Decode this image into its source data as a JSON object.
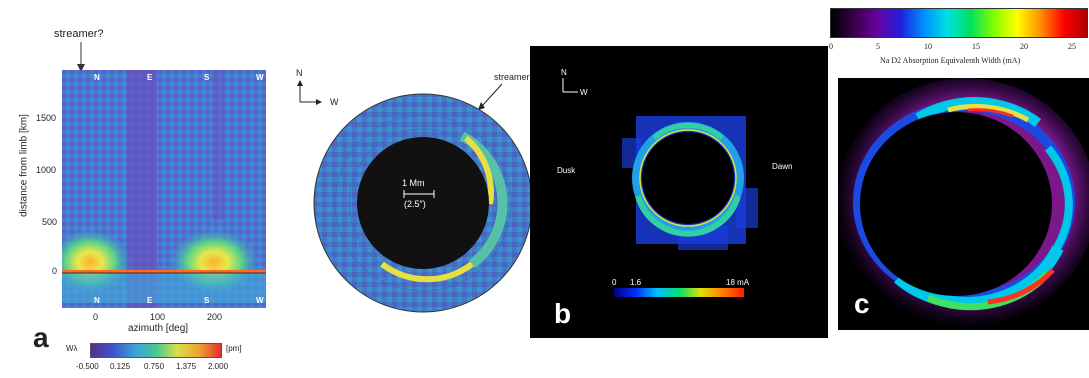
{
  "figure": {
    "panel_a": {
      "letter": "a",
      "annotation": "streamer?",
      "ylabel": "distance from limb [km]",
      "xlabel": "azimuth [deg]",
      "y_ticks": [
        "1500",
        "1000",
        "500",
        "0"
      ],
      "x_ticks": [
        "0",
        "100",
        "200"
      ],
      "top_dirs": [
        "N",
        "E",
        "S",
        "W"
      ],
      "bottom_dirs": [
        "N",
        "E",
        "S",
        "W"
      ],
      "cbar_label": "Wλ",
      "cbar_ticks": [
        "-0.500",
        "0.125",
        "0.750",
        "1.375",
        "2.000"
      ],
      "cbar_unit": "[pm]"
    },
    "panel_disk": {
      "compass_n": "N",
      "compass_w": "W",
      "annotation": "streamer",
      "scale_label": "1 Mm",
      "scale_sub": "(2.5″)"
    },
    "panel_b": {
      "letter": "b",
      "compass_n": "N",
      "compass_w": "W",
      "label_left": "Dusk",
      "label_right": "Dawn",
      "cbar_ticks": [
        "0",
        "1.6",
        "18 mA"
      ]
    },
    "panel_c": {
      "letter": "c",
      "cbar_ticks": [
        "0",
        "5",
        "10",
        "15",
        "20",
        "25"
      ],
      "cbar_label": "Na D2 Absorption Equivalenth Width (mA)"
    }
  }
}
